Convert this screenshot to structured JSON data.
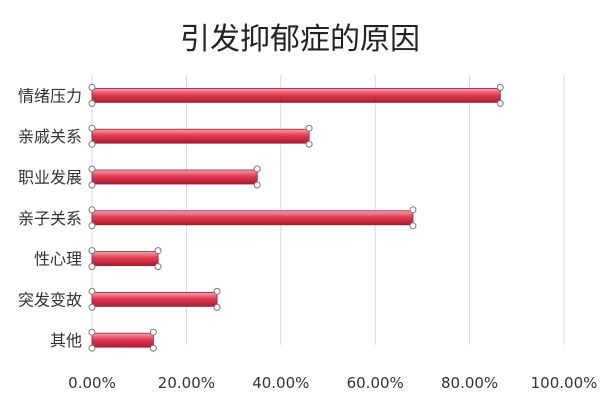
{
  "chart_data": {
    "type": "bar",
    "orientation": "horizontal",
    "title": "引发抑郁症的原因",
    "categories": [
      "情绪压力",
      "亲戚关系",
      "职业发展",
      "亲子关系",
      "性心理",
      "突发变故",
      "其他"
    ],
    "values": [
      0.865,
      0.46,
      0.35,
      0.68,
      0.14,
      0.265,
      0.13
    ],
    "xlim": [
      0,
      1.0
    ],
    "x_ticks": [
      "0.00%",
      "20.00%",
      "40.00%",
      "60.00%",
      "80.00%",
      "100.00%"
    ],
    "grid": true,
    "legend": "none",
    "colors": {
      "bar_top": "#f5a6b0",
      "bar_mid": "#e23b52",
      "bar_bottom": "#b01a30",
      "grid": "#d9d9d9"
    }
  }
}
